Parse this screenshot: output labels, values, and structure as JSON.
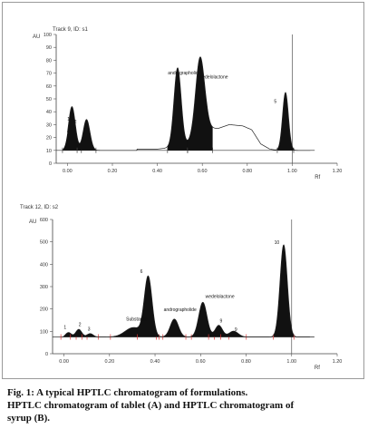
{
  "chart_data": [
    {
      "type": "line",
      "panel": "A",
      "title": "Track 9, ID: s1",
      "ylabel": "AU",
      "xlabel": "Rf",
      "xlim": [
        -0.05,
        1.2
      ],
      "ylim": [
        0,
        100
      ],
      "x_ticks": [
        "0.00",
        "0.20",
        "0.40",
        "0.60",
        "0.80",
        "1.00",
        "1.20"
      ],
      "y_ticks": [
        "0",
        "10",
        "20",
        "30",
        "40",
        "50",
        "60",
        "70",
        "80",
        "90",
        "100"
      ],
      "baseline": 10,
      "annotations": [
        {
          "text": "1",
          "x": 0.005,
          "y": 33
        },
        {
          "text": "2",
          "x": 0.035,
          "y": 31
        },
        {
          "text": "andrographolide",
          "x": 0.52,
          "y": 69
        },
        {
          "text": "wedelolactone",
          "x": 0.65,
          "y": 66
        },
        {
          "text": "5",
          "x": 0.925,
          "y": 47
        }
      ],
      "peaks": [
        {
          "label": "1",
          "center": 0.02,
          "height": 34,
          "width": 0.015,
          "filled": true
        },
        {
          "label": "2",
          "center": 0.085,
          "height": 24,
          "width": 0.015,
          "filled": true
        },
        {
          "label": "andrographolide",
          "center": 0.49,
          "height": 61,
          "width": 0.016,
          "filled": true
        },
        {
          "label": "wedelolactone",
          "center": 0.59,
          "height": 60,
          "width": 0.02,
          "filled": true
        },
        {
          "label": "5",
          "center": 0.97,
          "height": 45,
          "width": 0.013,
          "filled": true
        }
      ],
      "series": [
        {
          "x": [
            0.31,
            0.4,
            0.45,
            0.52,
            0.56,
            0.62,
            0.67,
            0.72,
            0.78,
            0.82,
            0.86,
            0.9,
            0.935
          ],
          "values": [
            11,
            11,
            12,
            14,
            18,
            27,
            27,
            30,
            29,
            26,
            15,
            11,
            10
          ]
        }
      ]
    },
    {
      "type": "line",
      "panel": "B",
      "title": "Track 12, ID: s2",
      "ylabel": "AU",
      "xlabel": "Rf",
      "xlim": [
        -0.05,
        1.2
      ],
      "ylim": [
        0,
        600
      ],
      "x_ticks": [
        "0.00",
        "0.20",
        "0.40",
        "0.60",
        "0.80",
        "1.00",
        "1.20"
      ],
      "y_ticks": [
        "0",
        "100",
        "200",
        "300",
        "400",
        "500",
        "600"
      ],
      "baseline": 75,
      "annotations": [
        {
          "text": "1",
          "x": 0.005,
          "y": 112
        },
        {
          "text": "2",
          "x": 0.07,
          "y": 124
        },
        {
          "text": "3",
          "x": 0.11,
          "y": 104
        },
        {
          "text": "Substance",
          "x": 0.32,
          "y": 148
        },
        {
          "text": "6",
          "x": 0.34,
          "y": 360
        },
        {
          "text": "andrographolide",
          "x": 0.51,
          "y": 190
        },
        {
          "text": "wedelolactone",
          "x": 0.685,
          "y": 250
        },
        {
          "text": "9",
          "x": 0.69,
          "y": 140
        },
        {
          "text": "9",
          "x": 0.755,
          "y": 102
        },
        {
          "text": "10",
          "x": 0.935,
          "y": 490
        }
      ],
      "peaks": [
        {
          "label": "1",
          "center": 0.02,
          "height": 20,
          "width": 0.012,
          "filled": true
        },
        {
          "label": "2",
          "center": 0.065,
          "height": 34,
          "width": 0.013,
          "filled": true
        },
        {
          "label": "3",
          "center": 0.115,
          "height": 15,
          "width": 0.013,
          "filled": true
        },
        {
          "label": "Substance",
          "center": 0.305,
          "height": 42,
          "width": 0.036,
          "filled": true
        },
        {
          "label": "6",
          "center": 0.37,
          "height": 265,
          "width": 0.017,
          "filled": true
        },
        {
          "label": "andrographolide",
          "center": 0.485,
          "height": 80,
          "width": 0.018,
          "filled": true
        },
        {
          "label": "wedelolactone",
          "center": 0.61,
          "height": 155,
          "width": 0.018,
          "filled": true
        },
        {
          "label": "9",
          "center": 0.68,
          "height": 52,
          "width": 0.016,
          "filled": true
        },
        {
          "label": "9",
          "center": 0.745,
          "height": 26,
          "width": 0.02,
          "filled": true
        },
        {
          "label": "10",
          "center": 0.965,
          "height": 412,
          "width": 0.016,
          "filled": true
        }
      ],
      "series": []
    }
  ],
  "caption": {
    "line1": "Fig. 1: A typical HPTLC chromatogram of formulations.",
    "line2": "HPTLC chromatogram of tablet (A) and HPTLC chromatogram of",
    "line3": "syrup (B)."
  }
}
